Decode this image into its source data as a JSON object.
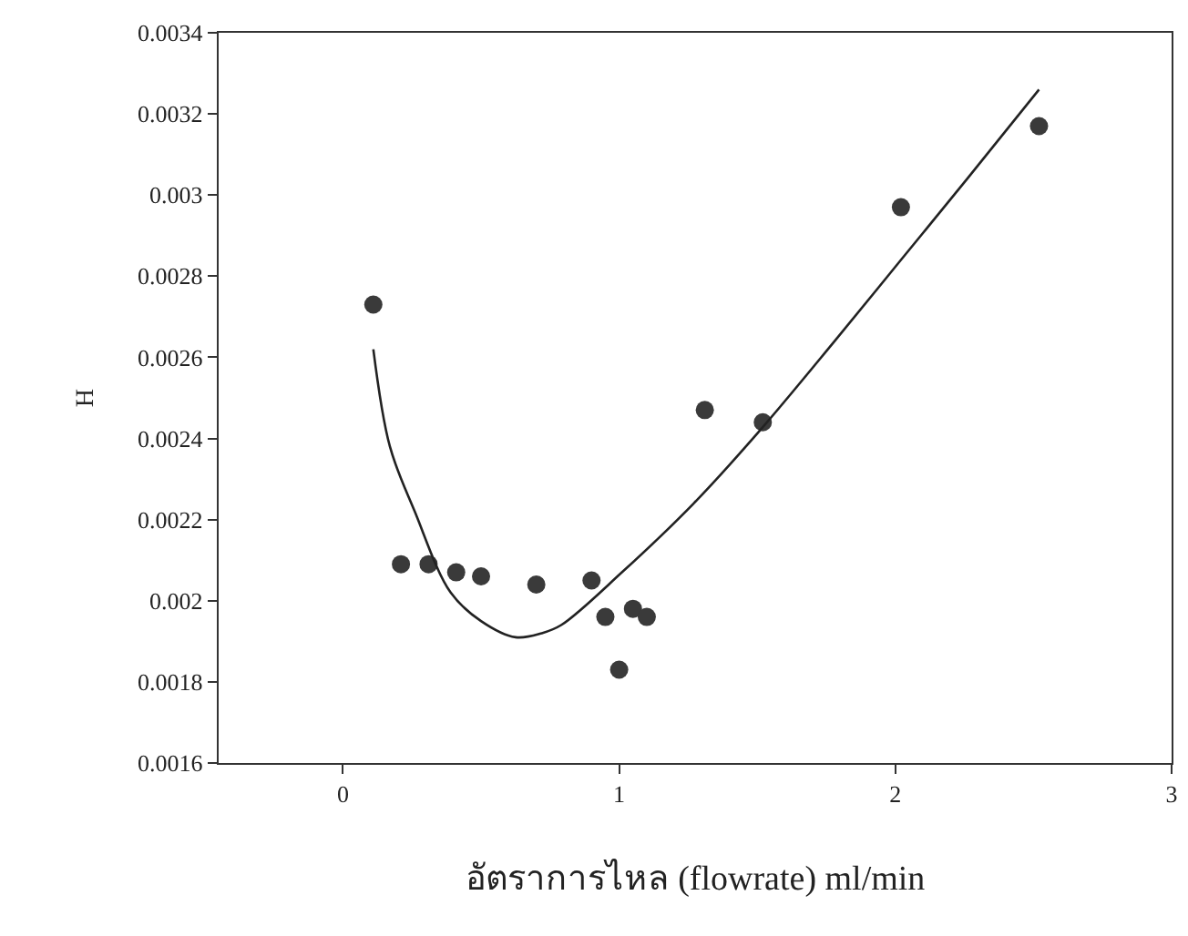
{
  "chart_data": {
    "type": "scatter",
    "xlabel": "อัตราการไหล (flowrate) ml/min",
    "ylabel": "H",
    "xlim": [
      -0.45,
      3
    ],
    "xticks": [
      0,
      1,
      2,
      3
    ],
    "ylim": [
      0.0016,
      0.0034
    ],
    "yticks": [
      0.0016,
      0.0018,
      0.002,
      0.0022,
      0.0024,
      0.0026,
      0.0028,
      0.003,
      0.0032,
      0.0034
    ],
    "legend": false,
    "series": [
      {
        "color": "#3a3a3a",
        "marker": "circle",
        "x": [
          0.11,
          0.21,
          0.31,
          0.41,
          0.5,
          0.7,
          0.9,
          0.95,
          1.0,
          1.05,
          1.1,
          1.31,
          1.52,
          2.02,
          2.52
        ],
        "values": [
          0.00273,
          0.00209,
          0.00209,
          0.00207,
          0.00206,
          0.00204,
          0.00205,
          0.00196,
          0.00183,
          0.00198,
          0.00196,
          0.00247,
          0.00244,
          0.00297,
          0.00317
        ]
      },
      {
        "type": "line",
        "color": "#222222",
        "line_style": "solid",
        "marker": "none",
        "x": [
          0.11,
          0.17,
          0.26,
          0.39,
          0.5,
          0.625,
          0.72,
          0.79,
          1.01,
          1.27,
          1.51,
          1.78,
          2.02,
          2.26,
          2.52
        ],
        "values": [
          0.00262,
          0.00238,
          0.00222,
          0.00202,
          0.00195,
          0.00191,
          0.00192,
          0.00194,
          0.00207,
          0.00224,
          0.00242,
          0.00264,
          0.00284,
          0.00304,
          0.00326
        ]
      }
    ]
  }
}
